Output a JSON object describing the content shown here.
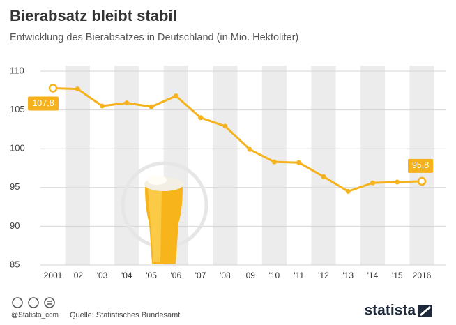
{
  "chart_data": {
    "type": "line",
    "title": "Bierabsatz bleibt stabil",
    "subtitle": "Entwicklung des Bierabsatzes in Deutschland (in Mio. Hektoliter)",
    "categories": [
      "2001",
      "'02",
      "'03",
      "'04",
      "'05",
      "'06",
      "'07",
      "'08",
      "'09",
      "'10",
      "'11",
      "'12",
      "'13",
      "'14",
      "'15",
      "2016"
    ],
    "values": [
      107.8,
      107.7,
      105.5,
      105.9,
      105.4,
      106.8,
      104.0,
      102.9,
      99.9,
      98.3,
      98.2,
      96.4,
      94.5,
      95.6,
      95.7,
      95.8
    ],
    "value_labels": [
      "107,8",
      null,
      null,
      null,
      null,
      null,
      null,
      null,
      null,
      null,
      null,
      null,
      null,
      null,
      null,
      "95,8"
    ],
    "color": "#f5b21d",
    "ylim": [
      85,
      110
    ],
    "yticks": [
      85,
      90,
      95,
      100,
      105,
      110
    ],
    "grid": true
  },
  "footer": {
    "handle": "@Statista_com",
    "source": "Quelle: Statistisches Bundesamt",
    "brand": "statista"
  }
}
